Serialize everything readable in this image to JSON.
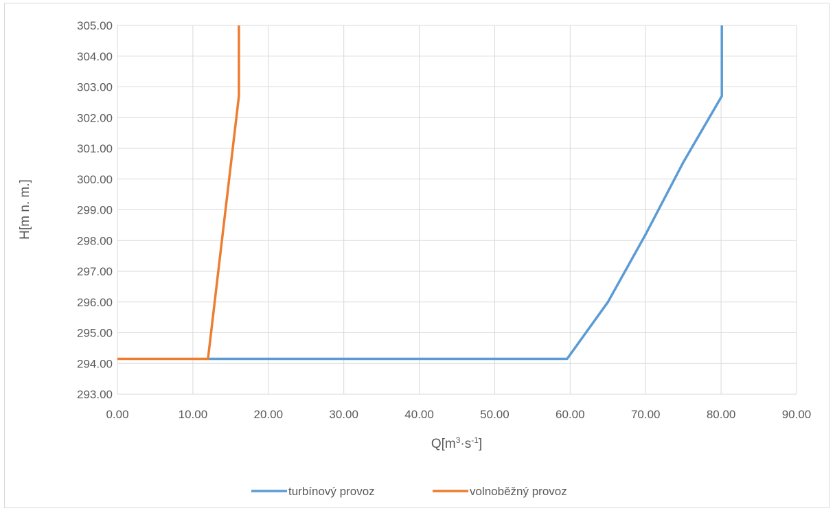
{
  "chart_data": {
    "type": "line",
    "xlabel": "Q[m³·s⁻¹]",
    "xlabel_parts": {
      "base": "Q[m",
      "sup1": "3",
      "mid": "·s",
      "sup2": "-1",
      "end": "]"
    },
    "ylabel": "H[m n. m.]",
    "xlim": [
      0,
      90
    ],
    "ylim": [
      293,
      305
    ],
    "x_ticks": [
      "0.00",
      "10.00",
      "20.00",
      "30.00",
      "40.00",
      "50.00",
      "60.00",
      "70.00",
      "80.00",
      "90.00"
    ],
    "y_ticks": [
      "293.00",
      "294.00",
      "295.00",
      "296.00",
      "297.00",
      "298.00",
      "299.00",
      "300.00",
      "301.00",
      "302.00",
      "303.00",
      "304.00",
      "305.00"
    ],
    "grid": true,
    "legend_position": "bottom",
    "series": [
      {
        "name": "turbínový provoz",
        "color": "#5b9bd5",
        "points": [
          [
            12.0,
            294.15
          ],
          [
            59.6,
            294.15
          ],
          [
            65.0,
            296.0
          ],
          [
            70.0,
            298.2
          ],
          [
            75.0,
            300.55
          ],
          [
            80.1,
            302.7
          ],
          [
            80.1,
            305.0
          ]
        ]
      },
      {
        "name": "volnoběžný provoz",
        "color": "#ed7d31",
        "points": [
          [
            0.0,
            294.15
          ],
          [
            12.0,
            294.15
          ],
          [
            16.1,
            302.7
          ],
          [
            16.1,
            305.0
          ]
        ]
      }
    ]
  }
}
